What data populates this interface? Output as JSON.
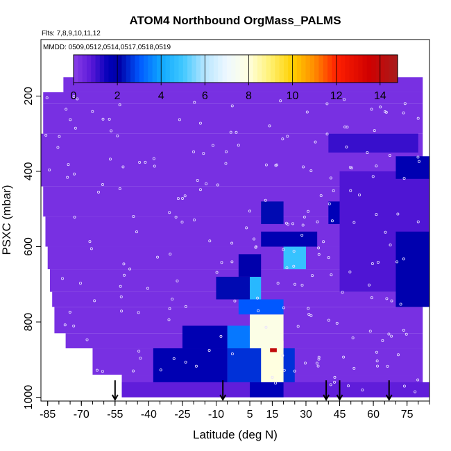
{
  "chart_data": {
    "type": "heatmap",
    "title": "ATOM4 Northbound OrgMass_PALMS",
    "flights_label": "Flts: 7,8,9,10,11,12",
    "dates_label": "MMDD: 0509,0512,0514,0517,0518,0519",
    "xlabel": "Latitude (deg N)",
    "ylabel": "PSXC (mbar)",
    "xlim": [
      -88,
      85
    ],
    "ylim": [
      1010,
      50
    ],
    "x_ticks": [
      -85,
      -70,
      -55,
      -40,
      -25,
      -10,
      5,
      15,
      30,
      45,
      60,
      75
    ],
    "x_tick_labels": [
      "-85",
      "-70",
      "-55",
      "-40",
      "-25",
      "-10",
      "5",
      "15",
      "30",
      "45",
      "60",
      "75"
    ],
    "y_ticks": [
      200,
      400,
      600,
      800,
      1000
    ],
    "y_tick_labels": [
      "200",
      "400",
      "600",
      "800",
      "1000"
    ],
    "colorbar": {
      "range": [
        0,
        14.8
      ],
      "ticks": [
        0,
        2,
        4,
        6,
        8,
        10,
        12,
        14
      ],
      "tick_labels": [
        "0",
        "2",
        "4",
        "6",
        "8",
        "10",
        "12",
        "14"
      ]
    },
    "background_value": 0.3,
    "enhanced_regions": [
      {
        "lat": [
          -52,
          85
        ],
        "p": [
          960,
          1000
        ],
        "value": 0.7
      },
      {
        "lat": [
          5,
          20
        ],
        "p": [
          960,
          1000
        ],
        "value": 1.6
      },
      {
        "lat": [
          -38,
          -5
        ],
        "p": [
          870,
          960
        ],
        "value": 1.8
      },
      {
        "lat": [
          -5,
          25
        ],
        "p": [
          870,
          960
        ],
        "value": 2.6
      },
      {
        "lat": [
          10,
          20
        ],
        "p": [
          850,
          960
        ],
        "value": 8.0
      },
      {
        "lat": [
          14,
          17
        ],
        "p": [
          820,
          880
        ],
        "value": 14.0
      },
      {
        "lat": [
          -25,
          -5
        ],
        "p": [
          810,
          870
        ],
        "value": 1.8
      },
      {
        "lat": [
          -5,
          5
        ],
        "p": [
          810,
          870
        ],
        "value": 3.4
      },
      {
        "lat": [
          5,
          20
        ],
        "p": [
          780,
          870
        ],
        "value": 7.8
      },
      {
        "lat": [
          0,
          20
        ],
        "p": [
          740,
          780
        ],
        "value": 3.0
      },
      {
        "lat": [
          -10,
          5
        ],
        "p": [
          680,
          740
        ],
        "value": 2.2
      },
      {
        "lat": [
          5,
          10
        ],
        "p": [
          680,
          740
        ],
        "value": 4.5
      },
      {
        "lat": [
          0,
          10
        ],
        "p": [
          620,
          680
        ],
        "value": 2.0
      },
      {
        "lat": [
          20,
          30
        ],
        "p": [
          600,
          660
        ],
        "value": 4.8
      },
      {
        "lat": [
          10,
          35
        ],
        "p": [
          560,
          600
        ],
        "value": 1.8
      },
      {
        "lat": [
          10,
          20
        ],
        "p": [
          480,
          540
        ],
        "value": 2.2
      },
      {
        "lat": [
          40,
          48
        ],
        "p": [
          480,
          540
        ],
        "value": 1.6
      },
      {
        "lat": [
          45,
          85
        ],
        "p": [
          400,
          720
        ],
        "value": 0.9
      },
      {
        "lat": [
          70,
          85
        ],
        "p": [
          560,
          760
        ],
        "value": 1.9
      },
      {
        "lat": [
          70,
          85
        ],
        "p": [
          360,
          420
        ],
        "value": 1.8
      },
      {
        "lat": [
          40,
          80
        ],
        "p": [
          300,
          350
        ],
        "value": 1.1
      }
    ],
    "flight_markers_lat": [
      -55,
      -7,
      39,
      45,
      67
    ]
  }
}
